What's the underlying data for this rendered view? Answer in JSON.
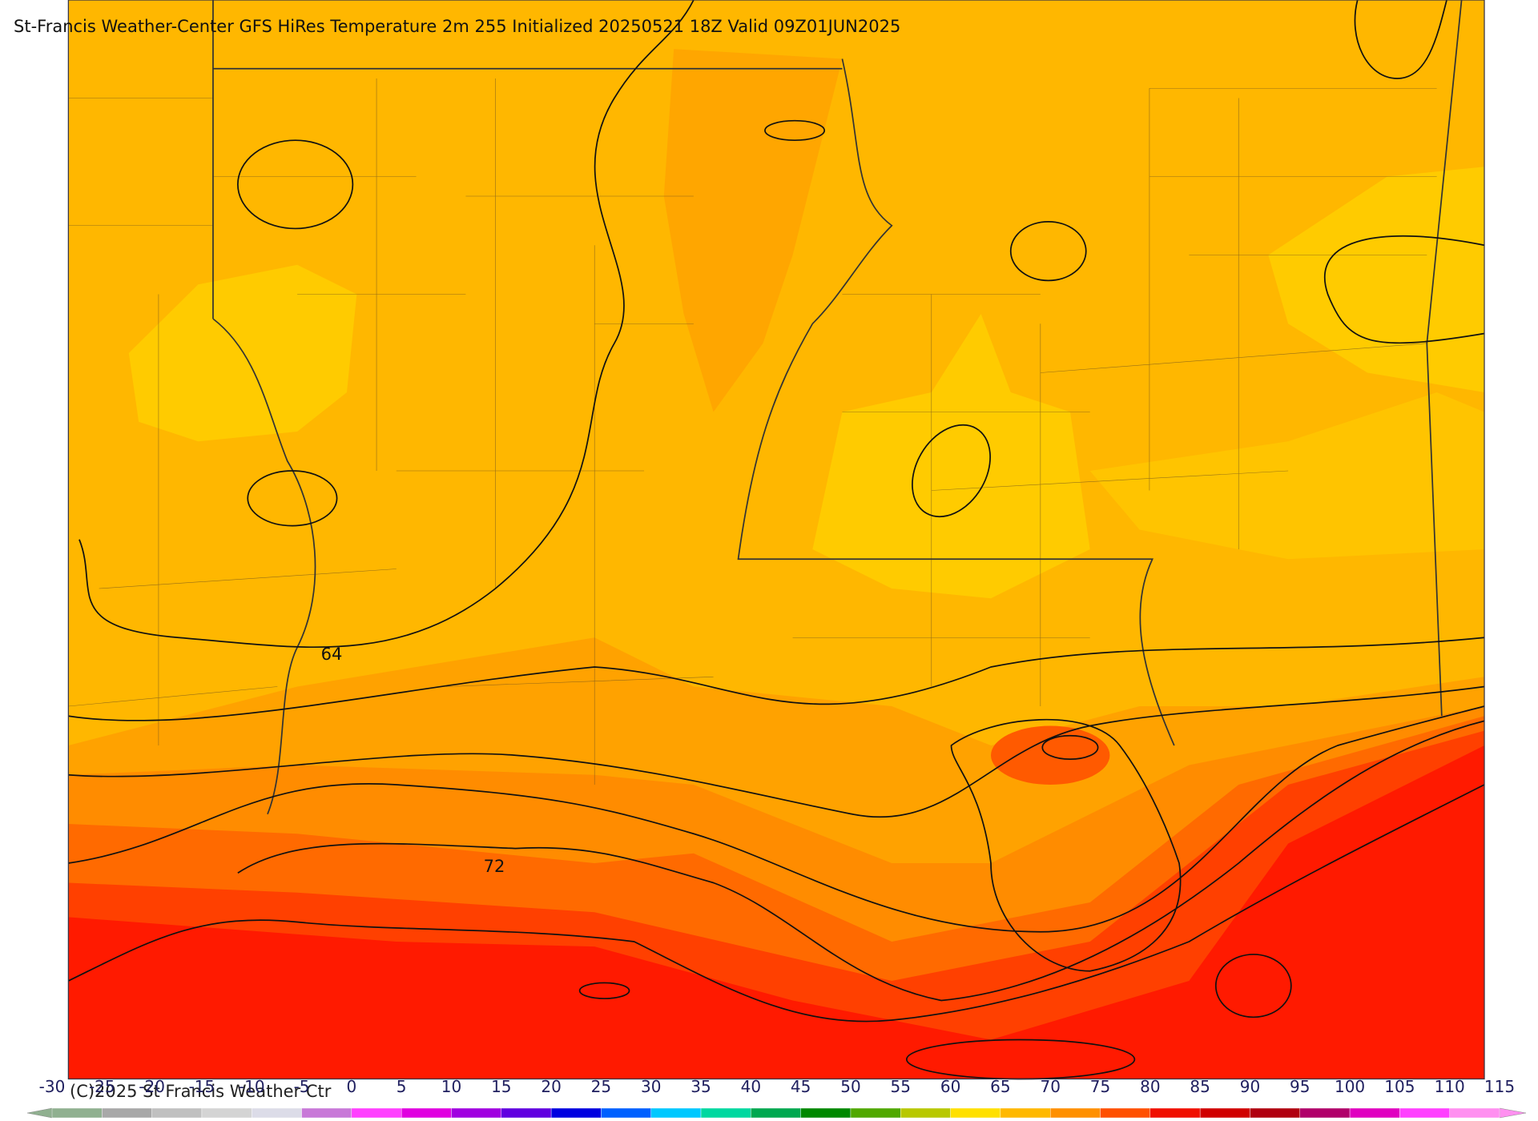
{
  "title": "St-Francis Weather-Center GFS HiRes Temperature 2m  255 Initialized 20250521 18Z Valid 09Z01JUN2025",
  "contour_labels": [
    "64",
    "72"
  ],
  "copyright": "(C)2025 St Francis Weather Ctr",
  "colorbar": {
    "ticks": [
      -30,
      -25,
      -20,
      -15,
      -10,
      -5,
      0,
      5,
      10,
      15,
      20,
      25,
      30,
      35,
      40,
      45,
      50,
      55,
      60,
      65,
      70,
      75,
      80,
      85,
      90,
      95,
      100,
      105,
      110,
      115
    ],
    "colors": [
      "#90b090",
      "#a8a8a8",
      "#c0c0c0",
      "#d4d4d4",
      "#dcdce8",
      "#c878d8",
      "#ff40ff",
      "#e000e0",
      "#a000e0",
      "#6000e0",
      "#0000e0",
      "#0060ff",
      "#00c8ff",
      "#00d8a0",
      "#00a850",
      "#008800",
      "#50a800",
      "#b8c800",
      "#ffe000",
      "#ffb800",
      "#ff9000",
      "#ff5000",
      "#f01000",
      "#d00000",
      "#b00010",
      "#b0006a",
      "#e000c0",
      "#ff40ff",
      "#ff90f0"
    ]
  }
}
